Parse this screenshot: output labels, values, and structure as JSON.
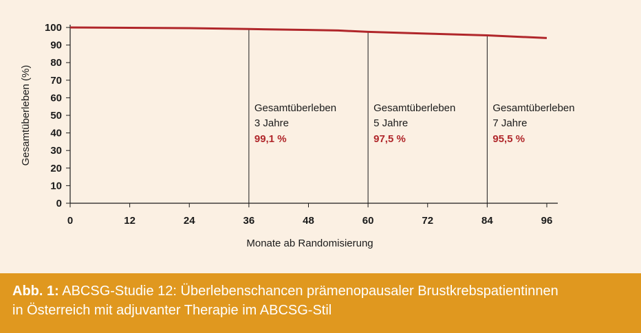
{
  "chart_data": {
    "type": "line",
    "xlabel": "Monate ab Randomisierung",
    "ylabel": "Gesamtüberleben (%)",
    "xlim": [
      0,
      96
    ],
    "ylim": [
      0,
      100
    ],
    "xticks": [
      0,
      12,
      24,
      36,
      48,
      60,
      72,
      84,
      96
    ],
    "yticks": [
      0,
      10,
      20,
      30,
      40,
      50,
      60,
      70,
      80,
      90,
      100
    ],
    "series": [
      {
        "name": "",
        "color": "#b0262a",
        "x": [
          0,
          12,
          24,
          36,
          48,
          54,
          60,
          72,
          84,
          96
        ],
        "y": [
          100,
          99.8,
          99.6,
          99.1,
          98.6,
          98.3,
          97.5,
          96.5,
          95.5,
          94.0
        ]
      }
    ],
    "markers": [
      {
        "x": 36,
        "label": "Gesamtüberleben",
        "period": "3 Jahre",
        "value": "99,1 %"
      },
      {
        "x": 60,
        "label": "Gesamtüberleben",
        "period": "5 Jahre",
        "value": "97,5 %"
      },
      {
        "x": 84,
        "label": "Gesamtüberleben",
        "period": "7 Jahre",
        "value": "95,5 %"
      }
    ],
    "grid": false,
    "value_color": "#b0262a"
  },
  "caption": {
    "prefix": "Abb. 1:",
    "line1": " ABCSG-Studie 12: Überlebenschancen prämenopausaler Brustkrebspatientinnen",
    "line2": "in Österreich mit adjuvanter Therapie im ABCSG-Stil"
  }
}
